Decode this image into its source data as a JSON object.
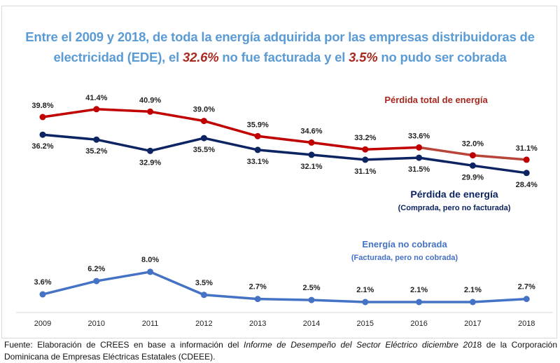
{
  "title": {
    "line1": "Entre el 2009 y 2018, de toda la energía adquirida por las empresas distribuidoras de",
    "line2_pre": "electricidad (EDE), el ",
    "line2_hl1": "32.6%",
    "line2_mid": " no fue facturada y el ",
    "line2_hl2": "3.5%",
    "line2_post": " no pudo ser cobrada"
  },
  "colors": {
    "title": "#5b9bd5",
    "highlight": "#a6281f",
    "total_loss": "#c00000",
    "total_loss_late": "#b8453a",
    "energy_loss": "#0d2463",
    "uncollected": "#4472c4",
    "axis": "#d9d9d9"
  },
  "chart_data": {
    "type": "line",
    "x": [
      "2009",
      "2010",
      "2011",
      "2012",
      "2013",
      "2014",
      "2015",
      "2016",
      "2017",
      "2018"
    ],
    "series": [
      {
        "name": "Pérdida total de energía",
        "values": [
          39.8,
          41.4,
          40.9,
          39.0,
          35.9,
          34.6,
          33.2,
          33.6,
          32.0,
          31.1
        ],
        "labels": [
          "39.8%",
          "41.4%",
          "40.9%",
          "39.0%",
          "35.9%",
          "34.6%",
          "33.2%",
          "33.6%",
          "32.0%",
          "31.1%"
        ],
        "label_position": "above"
      },
      {
        "name": "Pérdida de energía",
        "subtitle": "(Comprada, pero no facturada)",
        "values": [
          36.2,
          35.2,
          32.9,
          35.5,
          33.1,
          32.1,
          31.1,
          31.5,
          29.9,
          28.4
        ],
        "labels": [
          "36.2%",
          "35.2%",
          "32.9%",
          "35.5%",
          "33.1%",
          "32.1%",
          "31.1%",
          "31.5%",
          "29.9%",
          "28.4%"
        ],
        "label_position": "below"
      },
      {
        "name": "Energía no cobrada",
        "subtitle": "(Facturada, pero no cobrada)",
        "values": [
          3.6,
          6.2,
          8.0,
          3.5,
          2.7,
          2.5,
          2.1,
          2.1,
          2.1,
          2.7
        ],
        "labels": [
          "3.6%",
          "6.2%",
          "8.0%",
          "3.5%",
          "2.7%",
          "2.5%",
          "2.1%",
          "2.1%",
          "2.1%",
          "2.7%"
        ],
        "label_position": "above"
      }
    ],
    "xlabel": "",
    "ylabel": "",
    "grid": false,
    "y_axis_visible": false,
    "legend": "inline-labels"
  },
  "source": {
    "pre": "Fuente: Elaboración de CREES en base a información del ",
    "italic": "Informe de Desempeño del Sector Eléctrico diciembre 201",
    "post": "8 de la Corporación Dominicana de Empresas Eléctricas Estatales (CDEEE)."
  }
}
